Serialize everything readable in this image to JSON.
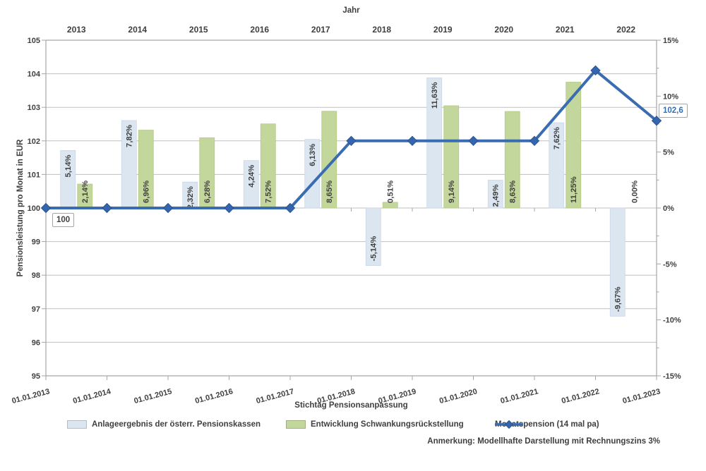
{
  "chart_data": {
    "type": "combo-bar-line",
    "top_axis_title": "Jahr",
    "xlabel": "Stichtag Pensionsanpassung",
    "ylabel_left": "Pensionsleistung pro Monat in EUR",
    "ylim_left": [
      95,
      105
    ],
    "ylim_right_pct": [
      -15,
      15
    ],
    "pct_per_eur": 3,
    "grid": true,
    "legend_position": "bottom",
    "years": [
      "2013",
      "2014",
      "2015",
      "2016",
      "2017",
      "2018",
      "2019",
      "2020",
      "2021",
      "2022"
    ],
    "dates": [
      "01.01.2013",
      "01.01.2014",
      "01.01.2015",
      "01.01.2016",
      "01.01.2017",
      "01.01.2018",
      "01.01.2019",
      "01.01.2020",
      "01.01.2021",
      "01.01.2022",
      "01.01.2023"
    ],
    "left_ticks": [
      "105",
      "104",
      "103",
      "102",
      "101",
      "100",
      "99",
      "98",
      "97",
      "96",
      "95"
    ],
    "right_ticks": [
      "15%",
      "10%",
      "5%",
      "0%",
      "-5%",
      "-10%",
      "-15%"
    ],
    "right_tick_pcts": [
      15,
      10,
      5,
      0,
      -5,
      -10,
      -15
    ],
    "series": [
      {
        "name": "Anlageergebnis der österr. Pensionskassen",
        "type": "bar",
        "color": "#dce6f1",
        "border": "#c9d6e8",
        "values_pct": [
          5.14,
          7.82,
          2.32,
          4.24,
          6.13,
          -5.14,
          11.63,
          2.49,
          7.62,
          -9.67
        ],
        "labels": [
          "5,14%",
          "7,82%",
          "2,32%",
          "4,24%",
          "6,13%",
          "-5,14%",
          "11,63%",
          "2,49%",
          "7,62%",
          "-9,67%"
        ]
      },
      {
        "name": "Entwicklung Schwankungsrückstellung",
        "type": "bar",
        "color": "#c3d69b",
        "border": "#b5ca85",
        "values_pct": [
          2.14,
          6.96,
          6.28,
          7.52,
          8.65,
          0.51,
          9.14,
          8.63,
          11.25,
          0.0
        ],
        "labels": [
          "2,14%",
          "6,96%",
          "6,28%",
          "7,52%",
          "8,65%",
          "0,51%",
          "9,14%",
          "8,63%",
          "11,25%",
          "0,00%"
        ]
      },
      {
        "name": "Monatspension (14 mal pa)",
        "type": "line",
        "color": "#3a6cb2",
        "marker_fill": "#3465ae",
        "marker_border": "#2b5590",
        "values_eur": [
          100,
          100,
          100,
          100,
          100,
          102,
          102,
          102,
          102,
          104.1,
          102.6
        ]
      }
    ],
    "annotations": {
      "start_label": "100",
      "end_label": "102,6",
      "end_label_color": "#366fb0"
    },
    "note": "Anmerkung: Modellhafte Darstellung mit Rechnungszins 3%",
    "colors": {
      "gridline": "#bfbfbf",
      "frame": "#a6a6a6",
      "text": "#3f3f3f"
    }
  }
}
